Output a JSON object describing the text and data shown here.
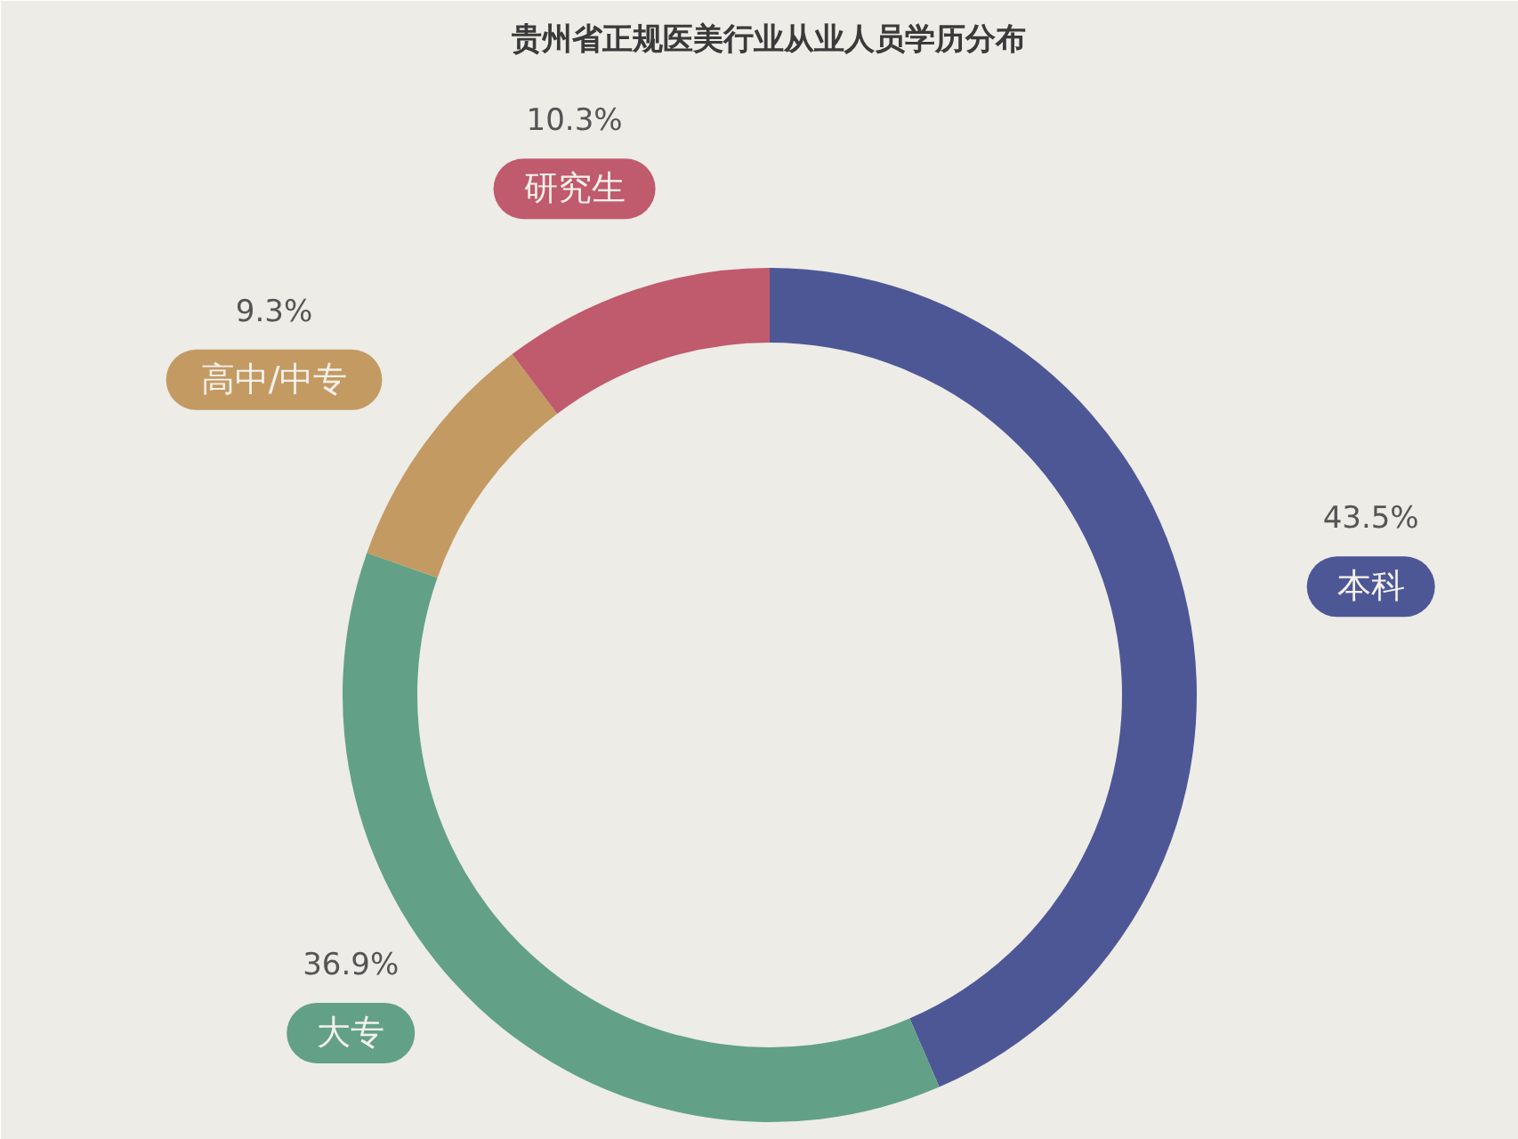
{
  "chart_data": {
    "type": "donut",
    "title": "贵州省正规医美行业从业人员学历分布",
    "categories": [
      "本科",
      "大专",
      "高中/中专",
      "研究生"
    ],
    "values": [
      43.5,
      36.9,
      9.3,
      10.3
    ],
    "value_labels": [
      "43.5%",
      "36.9%",
      "9.3%",
      "10.3%"
    ],
    "colors": [
      "#4e5796",
      "#62a187",
      "#c49a63",
      "#c05a6d"
    ]
  }
}
